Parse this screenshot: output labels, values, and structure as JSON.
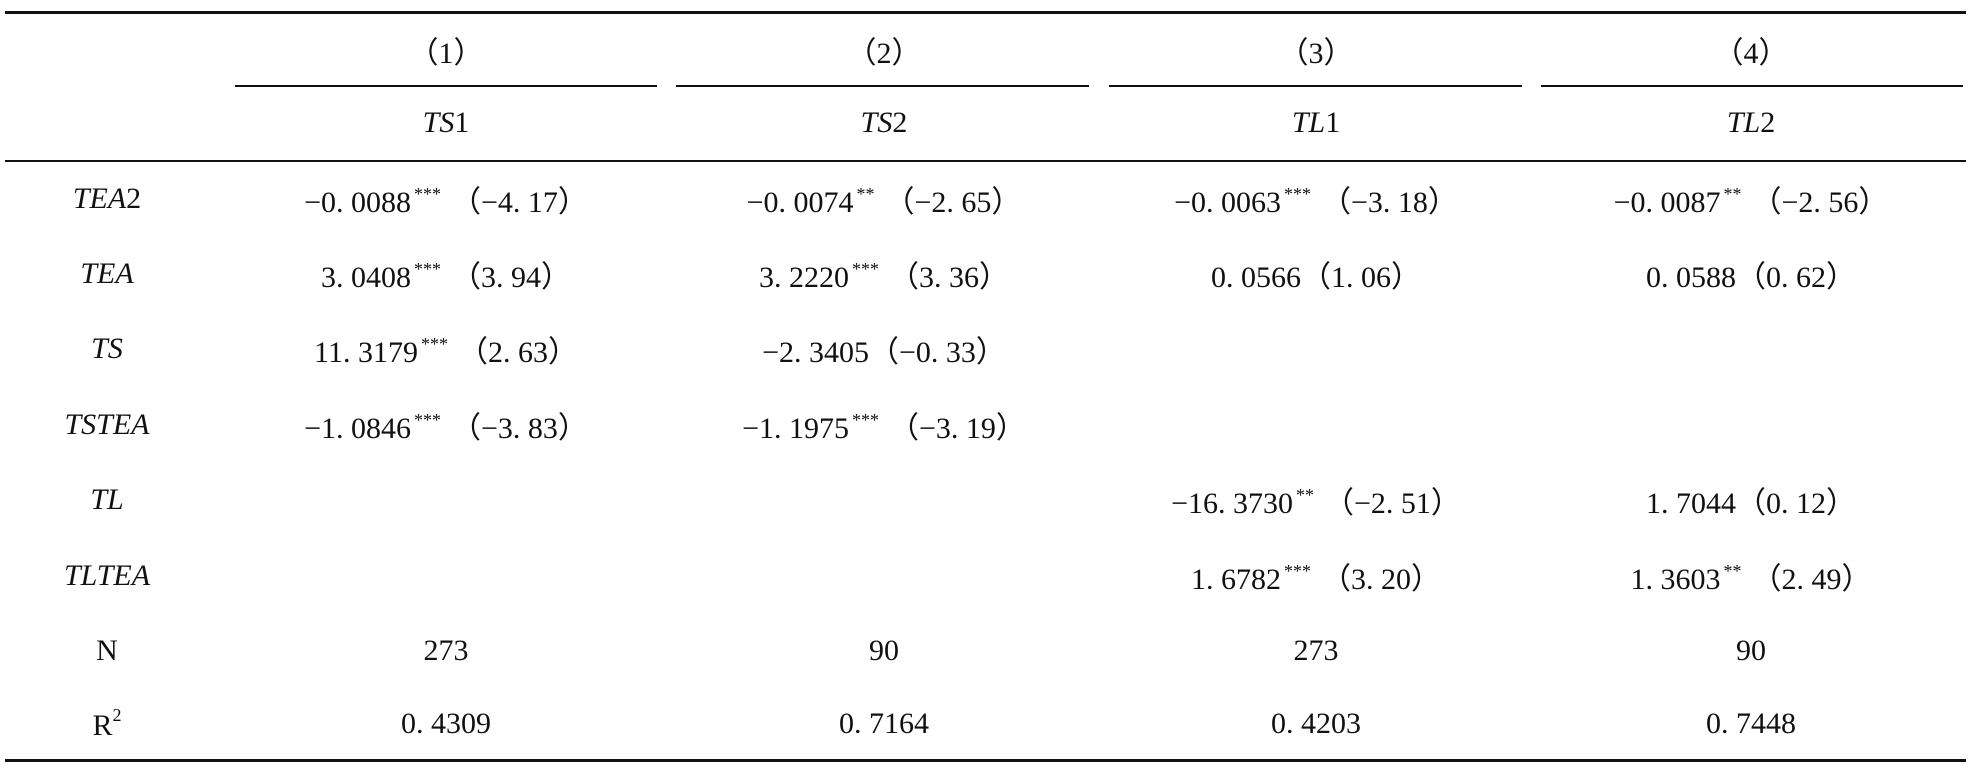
{
  "table": {
    "columns": [
      {
        "number": "（1）",
        "dep": {
          "italic": "TS",
          "plain": "1"
        }
      },
      {
        "number": "（2）",
        "dep": {
          "italic": "TS",
          "plain": "2"
        }
      },
      {
        "number": "（3）",
        "dep": {
          "italic": "TL",
          "plain": "1"
        }
      },
      {
        "number": "（4）",
        "dep": {
          "italic": "TL",
          "plain": "2"
        }
      }
    ],
    "rows": [
      {
        "label": {
          "italic": "TEA",
          "plain": "2"
        },
        "cells": [
          {
            "coef": "−0. 0088",
            "stars": "***",
            "t": "（−4. 17）"
          },
          {
            "coef": "−0. 0074",
            "stars": "**",
            "t": "（−2. 65）"
          },
          {
            "coef": "−0. 0063",
            "stars": "***",
            "t": "（−3. 18）"
          },
          {
            "coef": "−0. 0087",
            "stars": "**",
            "t": "（−2. 56）"
          }
        ]
      },
      {
        "label": {
          "italic": "TEA"
        },
        "cells": [
          {
            "coef": "3. 0408",
            "stars": "***",
            "t": "（3. 94）"
          },
          {
            "coef": "3. 2220",
            "stars": "***",
            "t": "（3. 36）"
          },
          {
            "coef": "0. 0566",
            "t": "（1. 06）"
          },
          {
            "coef": "0. 0588",
            "t": "（0. 62）"
          }
        ]
      },
      {
        "label": {
          "italic": "TS"
        },
        "cells": [
          {
            "coef": "11. 3179",
            "stars": "***",
            "t": "（2. 63）"
          },
          {
            "coef": "−2. 3405",
            "t": "（−0. 33）"
          },
          null,
          null
        ]
      },
      {
        "label": {
          "italic": "TSTEA"
        },
        "cells": [
          {
            "coef": "−1. 0846",
            "stars": "***",
            "t": "（−3. 83）"
          },
          {
            "coef": "−1. 1975",
            "stars": "***",
            "t": "（−3. 19）"
          },
          null,
          null
        ]
      },
      {
        "label": {
          "italic": "TL"
        },
        "cells": [
          null,
          null,
          {
            "coef": "−16. 3730",
            "stars": "**",
            "t": "（−2. 51）"
          },
          {
            "coef": "1. 7044",
            "t": "（0. 12）"
          }
        ]
      },
      {
        "label": {
          "italic": "TLTEA"
        },
        "cells": [
          null,
          null,
          {
            "coef": "1. 6782",
            "stars": "***",
            "t": "（3. 20）"
          },
          {
            "coef": "1. 3603",
            "stars": "**",
            "t": "（2. 49）"
          }
        ]
      },
      {
        "label": {
          "plain": "N"
        },
        "cells": [
          {
            "coef": "273"
          },
          {
            "coef": "90"
          },
          {
            "coef": "273"
          },
          {
            "coef": "90"
          }
        ]
      },
      {
        "label": {
          "plain": "R",
          "sup": "2"
        },
        "cells": [
          {
            "coef": "0. 4309"
          },
          {
            "coef": "0. 7164"
          },
          {
            "coef": "0. 4203"
          },
          {
            "coef": "0. 7448"
          }
        ]
      }
    ]
  }
}
